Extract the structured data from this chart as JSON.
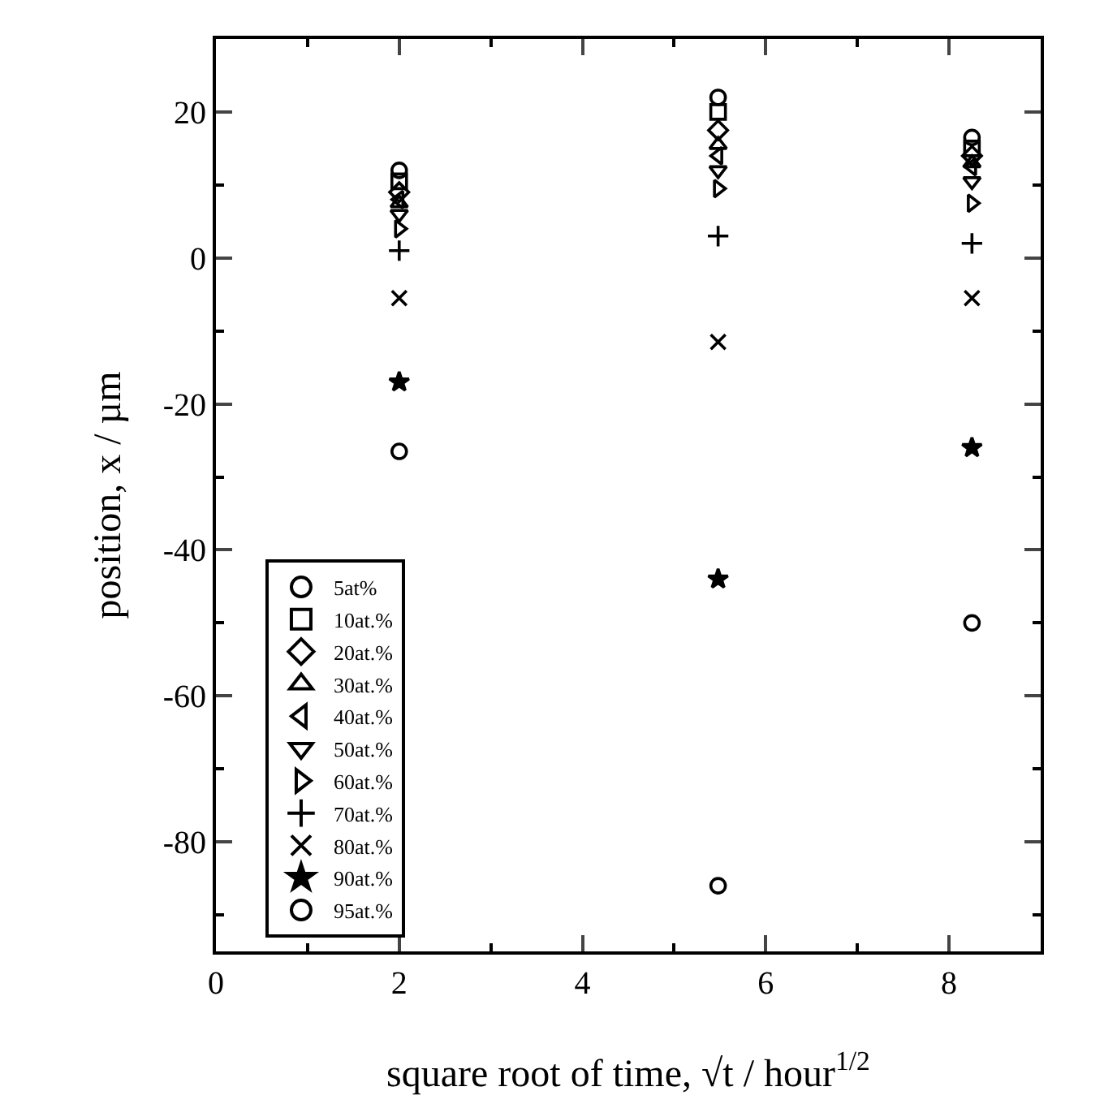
{
  "chart_data": {
    "type": "scatter",
    "xlabel": "square root of time, √t / hour$^{1/2}$",
    "ylabel": "position, x / µm",
    "x": [
      2,
      5.48,
      8.25
    ],
    "xlim": [
      0,
      9
    ],
    "xticks": [
      0,
      2,
      4,
      6,
      8
    ],
    "ylim": [
      -95,
      30
    ],
    "yticks": [
      -80,
      -60,
      -40,
      -20,
      0,
      20
    ],
    "grid": false,
    "legend": "bottom left",
    "series": [
      {
        "name": "5at%",
        "color": "#000000",
        "marker": "circle",
        "values": [
          12,
          22,
          16.5
        ]
      },
      {
        "name": "10at.%",
        "color": "#000000",
        "marker": "square",
        "values": [
          10.5,
          20,
          15
        ]
      },
      {
        "name": "20at.%",
        "color": "#000000",
        "marker": "diamond",
        "values": [
          9,
          17.5,
          14
        ]
      },
      {
        "name": "30at.%",
        "color": "#000000",
        "marker": "triangle",
        "values": [
          7.5,
          15.5,
          13
        ]
      },
      {
        "name": "40at.%",
        "color": "#000000",
        "marker": "triangle-left",
        "values": [
          8,
          14,
          12.5
        ]
      },
      {
        "name": "50at.%",
        "color": "#000000",
        "marker": "triangle-down",
        "values": [
          6,
          12,
          10.5
        ]
      },
      {
        "name": "60at.%",
        "color": "#000000",
        "marker": "triangle-right",
        "values": [
          4,
          9.5,
          7.5
        ]
      },
      {
        "name": "70at.%",
        "color": "#000000",
        "marker": "cross",
        "values": [
          1,
          3,
          2
        ]
      },
      {
        "name": "80at.%",
        "color": "#000000",
        "marker": "x",
        "values": [
          -5.5,
          -11.5,
          -5.5
        ]
      },
      {
        "name": "90at.%",
        "color": "#000000",
        "marker": "star",
        "values": [
          -17,
          -44,
          -26
        ]
      },
      {
        "name": "95at.%",
        "color": "#000000",
        "marker": "circle",
        "values": [
          -26.5,
          -86,
          -50
        ]
      }
    ]
  }
}
